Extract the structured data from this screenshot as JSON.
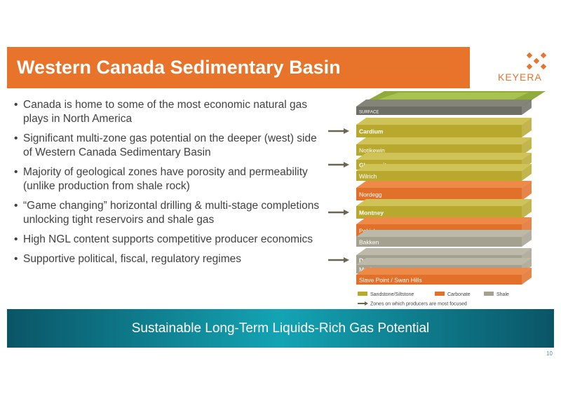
{
  "title": "Western Canada Sedimentary Basin",
  "logo": {
    "wordmark": "KEYERA",
    "color": "#e8732a"
  },
  "bullets": [
    "Canada is home to some of the most economic natural gas plays in North America",
    "Significant multi-zone gas potential on the deeper (west) side of Western Canada Sedimentary Basin",
    "Majority of geological zones have porosity and permeability (unlike production from shale rock)",
    "“Game changing” horizontal drilling & multi-stage completions unlocking tight reservoirs and shale gas",
    "High NGL content supports competitive producer economics",
    "Supportive political, fiscal, regulatory regimes"
  ],
  "layers": [
    {
      "label": "SURFACE",
      "type": "surface",
      "focus": false
    },
    {
      "label": "Cardium",
      "type": "sandstone",
      "focus": true
    },
    {
      "label": "Notikewin",
      "type": "sandstone",
      "focus": false
    },
    {
      "label": "Glauconite",
      "type": "sandstone",
      "focus": true
    },
    {
      "label": "Wilrich",
      "type": "sandstone",
      "focus": false
    },
    {
      "label": "Nordegg",
      "type": "carbonate",
      "focus": false
    },
    {
      "label": "Montney",
      "type": "sandstone",
      "focus": true
    },
    {
      "label": "Pekisko",
      "type": "carbonate",
      "focus": false
    },
    {
      "label": "Bakken",
      "type": "shale",
      "focus": false
    },
    {
      "label": "Duvernay",
      "type": "shale",
      "focus": true
    },
    {
      "label": "Muskwa",
      "type": "shale",
      "focus": false
    },
    {
      "label": "Slave Point / Swan Hills",
      "type": "carbonate",
      "focus": false
    }
  ],
  "legend": {
    "sandstone": "Sandstone/Siltstone",
    "carbonate": "Carbonate",
    "shale": "Shale",
    "arrow_note": "Zones on which producers are most focused"
  },
  "colors": {
    "accent": "#e8732a",
    "sandstone": "#b8a82e",
    "carbonate": "#e0702a",
    "shale": "#a5a190",
    "surface": "#6e6e64",
    "grass": "#8fab3c",
    "arrow": "#6b6451",
    "banner": "#13a4b4"
  },
  "banner": "Sustainable Long-Term Liquids-Rich Gas Potential",
  "page_number": "10"
}
